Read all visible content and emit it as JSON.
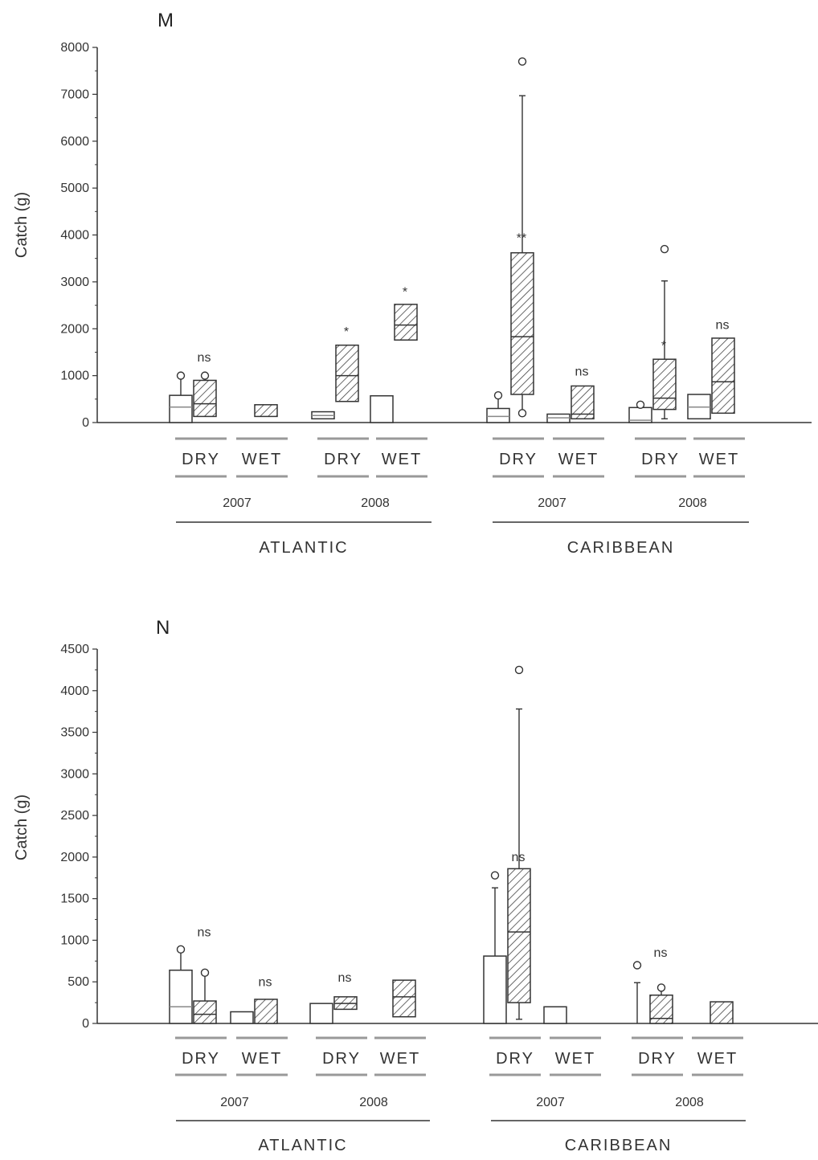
{
  "chart_data": [
    {
      "type": "boxplot",
      "panel": "M",
      "ylabel": "Catch (g)",
      "ylim": [
        0,
        8000
      ],
      "yticks": [
        0,
        1000,
        2000,
        3000,
        4000,
        5000,
        6000,
        7000,
        8000
      ],
      "regions": [
        "ATLANTIC",
        "CARIBBEAN"
      ],
      "years": [
        "2007",
        "2008"
      ],
      "seasons": [
        "DRY",
        "WET"
      ],
      "boxes": [
        {
          "region": "ATLANTIC",
          "year": "2007",
          "season": "DRY",
          "style": "open",
          "q1": 0,
          "median": 330,
          "q3": 580,
          "whisker_low": 0,
          "whisker_high": 1000,
          "outliers": [
            1000
          ]
        },
        {
          "region": "ATLANTIC",
          "year": "2007",
          "season": "DRY",
          "style": "hatched",
          "q1": 130,
          "median": 400,
          "q3": 900,
          "whisker_low": 130,
          "whisker_high": 1000,
          "outliers": [
            1000
          ]
        },
        {
          "region": "ATLANTIC",
          "year": "2007",
          "season": "WET",
          "style": "hatched",
          "q1": 130,
          "median": 130,
          "q3": 380,
          "whisker_low": null,
          "whisker_high": null,
          "outliers": []
        },
        {
          "region": "ATLANTIC",
          "year": "2008",
          "season": "DRY",
          "style": "open",
          "q1": 80,
          "median": 150,
          "q3": 230,
          "whisker_low": null,
          "whisker_high": null,
          "outliers": []
        },
        {
          "region": "ATLANTIC",
          "year": "2008",
          "season": "DRY",
          "style": "hatched",
          "q1": 450,
          "median": 1000,
          "q3": 1650,
          "whisker_low": null,
          "whisker_high": null,
          "outliers": []
        },
        {
          "region": "ATLANTIC",
          "year": "2008",
          "season": "WET",
          "style": "open",
          "q1": 0,
          "median": 0,
          "q3": 570,
          "whisker_low": null,
          "whisker_high": null,
          "outliers": []
        },
        {
          "region": "ATLANTIC",
          "year": "2008",
          "season": "WET",
          "style": "hatched",
          "q1": 1760,
          "median": 2080,
          "q3": 2520,
          "whisker_low": null,
          "whisker_high": null,
          "outliers": []
        },
        {
          "region": "CARIBBEAN",
          "year": "2007",
          "season": "DRY",
          "style": "open",
          "q1": 0,
          "median": 130,
          "q3": 300,
          "whisker_low": 0,
          "whisker_high": 580,
          "outliers": [
            580
          ]
        },
        {
          "region": "CARIBBEAN",
          "year": "2007",
          "season": "DRY",
          "style": "hatched",
          "q1": 600,
          "median": 1830,
          "q3": 3620,
          "whisker_low": 200,
          "whisker_high": 6970,
          "outliers": [
            200,
            7700
          ]
        },
        {
          "region": "CARIBBEAN",
          "year": "2007",
          "season": "WET",
          "style": "open",
          "q1": 0,
          "median": 100,
          "q3": 180,
          "whisker_low": null,
          "whisker_high": null,
          "outliers": []
        },
        {
          "region": "CARIBBEAN",
          "year": "2007",
          "season": "WET",
          "style": "hatched",
          "q1": 80,
          "median": 180,
          "q3": 780,
          "whisker_low": null,
          "whisker_high": null,
          "outliers": []
        },
        {
          "region": "CARIBBEAN",
          "year": "2008",
          "season": "DRY",
          "style": "open",
          "q1": 0,
          "median": 50,
          "q3": 320,
          "whisker_low": 0,
          "whisker_high": 380,
          "outliers": [
            380
          ]
        },
        {
          "region": "CARIBBEAN",
          "year": "2008",
          "season": "DRY",
          "style": "hatched",
          "q1": 280,
          "median": 520,
          "q3": 1350,
          "whisker_low": 80,
          "whisker_high": 3020,
          "outliers": [
            3700
          ]
        },
        {
          "region": "CARIBBEAN",
          "year": "2008",
          "season": "WET",
          "style": "open",
          "q1": 80,
          "median": 330,
          "q3": 600,
          "whisker_low": null,
          "whisker_high": null,
          "outliers": []
        },
        {
          "region": "CARIBBEAN",
          "year": "2008",
          "season": "WET",
          "style": "hatched",
          "q1": 200,
          "median": 870,
          "q3": 1800,
          "whisker_low": null,
          "whisker_high": null,
          "outliers": []
        }
      ],
      "annotations": [
        {
          "text": "ns",
          "region": "ATLANTIC",
          "year": "2007",
          "season": "DRY",
          "y": 1300
        },
        {
          "text": "*",
          "region": "ATLANTIC",
          "year": "2008",
          "season": "DRY",
          "y": 1850
        },
        {
          "text": "*",
          "region": "ATLANTIC",
          "year": "2008",
          "season": "WET",
          "y": 2700
        },
        {
          "text": "**",
          "region": "CARIBBEAN",
          "year": "2007",
          "season": "DRY",
          "y": 3850
        },
        {
          "text": "ns",
          "region": "CARIBBEAN",
          "year": "2007",
          "season": "WET",
          "y": 1000
        },
        {
          "text": "*",
          "region": "CARIBBEAN",
          "year": "2008",
          "season": "DRY",
          "y": 1550
        },
        {
          "text": "ns",
          "region": "CARIBBEAN",
          "year": "2008",
          "season": "WET",
          "y": 2000
        }
      ]
    },
    {
      "type": "boxplot",
      "panel": "N",
      "ylabel": "Catch (g)",
      "ylim": [
        0,
        4500
      ],
      "yticks": [
        0,
        500,
        1000,
        1500,
        2000,
        2500,
        3000,
        3500,
        4000,
        4500
      ],
      "regions": [
        "ATLANTIC",
        "CARIBBEAN"
      ],
      "years": [
        "2007",
        "2008"
      ],
      "seasons": [
        "DRY",
        "WET"
      ],
      "boxes": [
        {
          "region": "ATLANTIC",
          "year": "2007",
          "season": "DRY",
          "style": "open",
          "q1": 0,
          "median": 200,
          "q3": 640,
          "whisker_low": 0,
          "whisker_high": 890,
          "outliers": [
            890
          ]
        },
        {
          "region": "ATLANTIC",
          "year": "2007",
          "season": "DRY",
          "style": "hatched",
          "q1": 0,
          "median": 110,
          "q3": 270,
          "whisker_low": 0,
          "whisker_high": 610,
          "outliers": [
            610
          ]
        },
        {
          "region": "ATLANTIC",
          "year": "2007",
          "season": "WET",
          "style": "open",
          "q1": 0,
          "median": 0,
          "q3": 140,
          "whisker_low": null,
          "whisker_high": null,
          "outliers": []
        },
        {
          "region": "ATLANTIC",
          "year": "2007",
          "season": "WET",
          "style": "hatched",
          "q1": 0,
          "median": 0,
          "q3": 290,
          "whisker_low": null,
          "whisker_high": null,
          "outliers": []
        },
        {
          "region": "ATLANTIC",
          "year": "2008",
          "season": "DRY",
          "style": "open",
          "q1": 0,
          "median": 0,
          "q3": 240,
          "whisker_low": null,
          "whisker_high": null,
          "outliers": []
        },
        {
          "region": "ATLANTIC",
          "year": "2008",
          "season": "DRY",
          "style": "hatched",
          "q1": 170,
          "median": 240,
          "q3": 320,
          "whisker_low": null,
          "whisker_high": null,
          "outliers": []
        },
        {
          "region": "ATLANTIC",
          "year": "2008",
          "season": "WET",
          "style": "hatched",
          "q1": 80,
          "median": 320,
          "q3": 520,
          "whisker_low": null,
          "whisker_high": null,
          "outliers": []
        },
        {
          "region": "CARIBBEAN",
          "year": "2007",
          "season": "DRY",
          "style": "open",
          "q1": 0,
          "median": 0,
          "q3": 810,
          "whisker_low": 0,
          "whisker_high": 1630,
          "outliers": [
            1780
          ]
        },
        {
          "region": "CARIBBEAN",
          "year": "2007",
          "season": "DRY",
          "style": "hatched",
          "q1": 250,
          "median": 1100,
          "q3": 1860,
          "whisker_low": 50,
          "whisker_high": 3780,
          "outliers": [
            4250
          ]
        },
        {
          "region": "CARIBBEAN",
          "year": "2007",
          "season": "WET",
          "style": "open",
          "q1": 0,
          "median": 0,
          "q3": 200,
          "whisker_low": null,
          "whisker_high": null,
          "outliers": []
        },
        {
          "region": "CARIBBEAN",
          "year": "2008",
          "season": "DRY",
          "style": "open",
          "q1": 0,
          "median": 0,
          "q3": 0,
          "whisker_low": 0,
          "whisker_high": 490,
          "outliers": [
            700
          ]
        },
        {
          "region": "CARIBBEAN",
          "year": "2008",
          "season": "DRY",
          "style": "hatched",
          "q1": 0,
          "median": 60,
          "q3": 340,
          "whisker_low": 0,
          "whisker_high": 430,
          "outliers": [
            430
          ]
        },
        {
          "region": "CARIBBEAN",
          "year": "2008",
          "season": "WET",
          "style": "hatched",
          "q1": 0,
          "median": 0,
          "q3": 260,
          "whisker_low": null,
          "whisker_high": null,
          "outliers": []
        }
      ],
      "annotations": [
        {
          "text": "ns",
          "region": "ATLANTIC",
          "year": "2007",
          "season": "DRY",
          "y": 1050
        },
        {
          "text": "ns",
          "region": "ATLANTIC",
          "year": "2007",
          "season": "WET",
          "y": 450
        },
        {
          "text": "ns",
          "region": "ATLANTIC",
          "year": "2008",
          "season": "DRY",
          "y": 500
        },
        {
          "text": "ns",
          "region": "CARIBBEAN",
          "year": "2007",
          "season": "DRY",
          "y": 1950
        },
        {
          "text": "ns",
          "region": "CARIBBEAN",
          "year": "2008",
          "season": "DRY",
          "y": 800
        }
      ]
    }
  ],
  "colors": {
    "axis": "#333333",
    "hatch": "#444444",
    "group_line": "#999999"
  }
}
